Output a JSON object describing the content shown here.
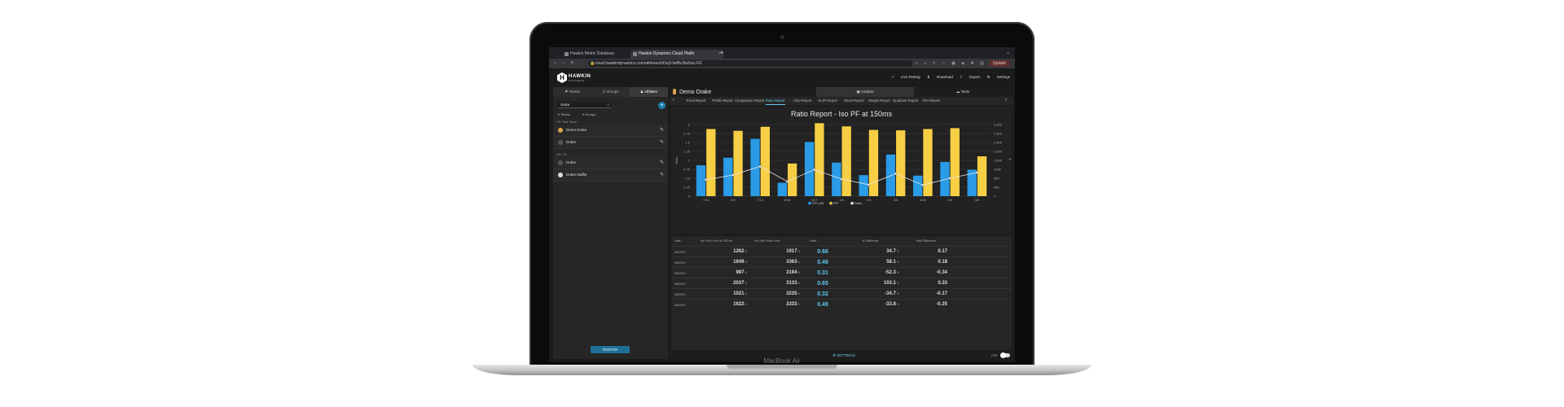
{
  "device": {
    "brand_label": "MacBook Air"
  },
  "browser": {
    "tabs": [
      {
        "label": "Hawkin Metric Database",
        "active": false
      },
      {
        "label": "Hawkin Dynamics Cloud Platfo",
        "active": true
      }
    ],
    "new_tab": "+",
    "url": "cloud.hawkindynamics.com/athletes/hDnj3Jw8fv3bx6wLXG",
    "update_label": "Update"
  },
  "app": {
    "logo_word": "HAWKIN",
    "logo_sub": "DYNAMICS",
    "logo_letter": "H",
    "header_links": [
      "Live Testing",
      "Download",
      "Export",
      "Settings"
    ]
  },
  "sidebar": {
    "tabs": [
      "Teams",
      "Groups",
      "Athletes"
    ],
    "search_value": "drake",
    "filters": [
      "Teams",
      "Groups"
    ],
    "groups": [
      {
        "label": "HD Test Team",
        "athletes": [
          "Demo Drake",
          "Drake"
        ]
      },
      {
        "label": "NFL DL",
        "athletes": [
          "Drake",
          "Drake Maffie"
        ]
      }
    ],
    "roster_button": "ROSTER"
  },
  "main": {
    "athlete_name": "Demo Drake",
    "mode_tabs": [
      "Analyze",
      "Tests"
    ],
    "report_tabs": [
      "Trend Report",
      "Profile Report",
      "Comparison Report",
      "Ratio Report",
      "CMJ Report",
      "SLJR Report",
      "Shoot Report",
      "Weight Report",
      "Quadrant Report",
      "TSA Report"
    ],
    "active_report": "Ratio Report"
  },
  "colors": {
    "blue_series": "#2a9be6",
    "yellow_series": "#f7cf45",
    "ratio_line": "#e8e8e8",
    "accent": "#5ccaf2"
  },
  "chart_data": {
    "type": "bar",
    "title": "Ratio Report - Iso PF at 150ms",
    "ylabel_left": "Ratio",
    "ylabel_right": "N",
    "categories": [
      "7/11",
      "5/3",
      "7/14",
      "8/16",
      "10/7",
      "1/6",
      "1/5",
      "2/8",
      "4/28",
      "5/8",
      "3/6"
    ],
    "left_ticks": [
      "0",
      "0.25",
      "0.5",
      "0.75",
      "1",
      "1.25",
      "1.5",
      "1.75",
      "2"
    ],
    "right_ticks": [
      "0",
      "400",
      "800",
      "1200",
      "1,600",
      "2,000",
      "2,400",
      "2,800",
      "3,200"
    ],
    "left_ylim": [
      0,
      2
    ],
    "right_ylim": [
      0,
      3200
    ],
    "series": [
      {
        "name": "ITP-150",
        "axis": "right",
        "values": [
          1380,
          1720,
          2560,
          600,
          2420,
          1500,
          940,
          1860,
          920,
          1530,
          1180
        ]
      },
      {
        "name": "IPF",
        "axis": "right",
        "values": [
          3000,
          2920,
          3100,
          1460,
          3260,
          3120,
          2960,
          2940,
          3000,
          3040,
          1780
        ]
      },
      {
        "name": "Ratio",
        "axis": "left",
        "values": [
          0.46,
          0.59,
          0.83,
          0.41,
          0.74,
          0.48,
          0.32,
          0.63,
          0.31,
          0.5,
          0.66
        ]
      }
    ],
    "legend": [
      "ITP-150",
      "IPF",
      "Ratio"
    ],
    "legend_position": "bottom"
  },
  "table": {
    "headers": [
      "Date",
      "Iso Test Force at 150 ms",
      "Iso Test Peak Force",
      "Ratio",
      "% Difference",
      "Total Difference"
    ],
    "unit": "N",
    "pct_unit": "%",
    "rows": [
      {
        "date": "8/6/2021",
        "force150": "1262",
        "peak": "1917",
        "ratio": "0.66",
        "pct": "34.7",
        "total": "0.17"
      },
      {
        "date": "8/6/2021",
        "force150": "1649",
        "peak": "3363",
        "ratio": "0.49",
        "pct": "58.1",
        "total": "0.18"
      },
      {
        "date": "8/6/2021",
        "force150": "987",
        "peak": "3194",
        "ratio": "0.31",
        "pct": "-52.3",
        "total": "-0.34"
      },
      {
        "date": "8/6/2021",
        "force150": "2037",
        "peak": "3133",
        "ratio": "0.65",
        "pct": "103.1",
        "total": "0.33"
      },
      {
        "date": "8/6/2021",
        "force150": "1021",
        "peak": "3235",
        "ratio": "0.32",
        "pct": "-34.7",
        "total": "-0.17"
      },
      {
        "date": "8/6/2021",
        "force150": "1622",
        "peak": "3333",
        "ratio": "0.49",
        "pct": "-33.8",
        "total": "-0.25"
      }
    ],
    "settings_label": "SETTINGS",
    "pdf_label": "PDF"
  }
}
